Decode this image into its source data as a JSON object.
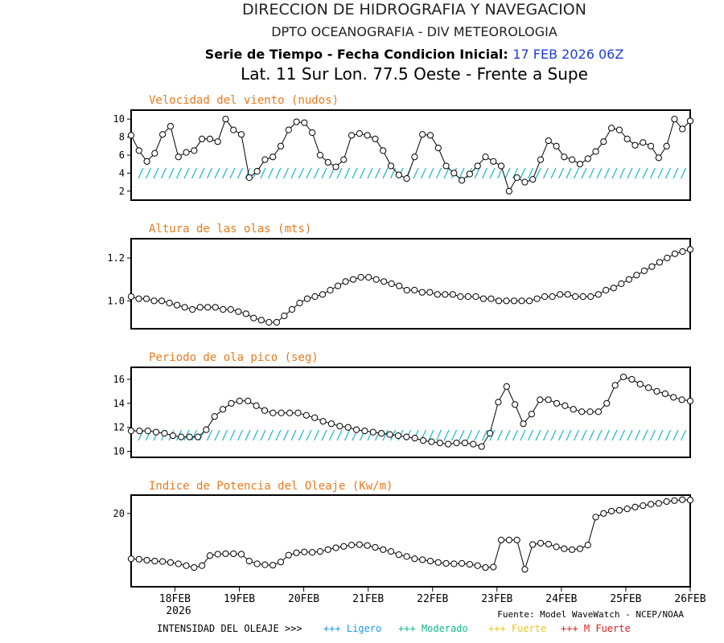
{
  "header": {
    "line1": "DIRECCION DE HIDROGRAFIA Y NAVEGACION",
    "line2": "DPTO OCEANOGRAFIA - DIV METEOROLOGIA",
    "line3_prefix": "Serie de Tiempo - Fecha Condicion Inicial:",
    "line3_date": "17 FEB 2026 06Z",
    "line4": "Lat. 11 Sur  Lon. 77.5 Oeste - Frente a Supe"
  },
  "colors": {
    "title_orange": "#e87a1e",
    "date_blue": "#1e3cd8",
    "arrow_cyan": "#17b6c8",
    "ligero": "#1a9be0",
    "moderado": "#10b890",
    "fuerte": "#e8c81a",
    "mfuerte": "#e02020"
  },
  "x_axis": {
    "ticks": [
      "18FEB",
      "19FEB",
      "20FEB",
      "21FEB",
      "22FEB",
      "23FEB",
      "24FEB",
      "25FEB",
      "26FEB"
    ],
    "year": "2026"
  },
  "chart_data": [
    {
      "type": "line",
      "title": "Velocidad del viento (nudos)",
      "ylim": [
        1,
        11
      ],
      "yticks": [
        2,
        4,
        6,
        8,
        10
      ],
      "y_tick_labels": [
        "2",
        "4",
        "6",
        "8",
        "10"
      ],
      "arrows": "wind direction arrows",
      "values": [
        8.2,
        6.5,
        5.3,
        6.2,
        8.3,
        9.2,
        5.8,
        6.3,
        6.5,
        7.8,
        7.8,
        7.5,
        10.0,
        8.8,
        8.3,
        3.5,
        4.2,
        5.5,
        5.8,
        7.0,
        8.8,
        9.7,
        9.6,
        8.5,
        6.0,
        5.2,
        4.7,
        5.5,
        8.2,
        8.4,
        8.2,
        7.8,
        6.5,
        4.8,
        3.8,
        3.4,
        5.8,
        8.3,
        8.2,
        6.8,
        4.8,
        4.0,
        3.2,
        3.9,
        4.8,
        5.8,
        5.3,
        4.8,
        2.0,
        3.5,
        3.0,
        3.3,
        5.5,
        7.6,
        7.0,
        5.8,
        5.5,
        5.0,
        5.6,
        6.4,
        7.5,
        9.0,
        8.8,
        7.8,
        7.1,
        7.4,
        7.0,
        5.7,
        7.0,
        10.0,
        8.9,
        9.8
      ]
    },
    {
      "type": "line",
      "title": "Altura de las olas (mts)",
      "ylim": [
        0.87,
        1.29
      ],
      "yticks": [
        1.0,
        1.2
      ],
      "y_tick_labels": [
        "1.0",
        "1.2"
      ],
      "values": [
        1.02,
        1.01,
        1.01,
        1.0,
        1.0,
        0.99,
        0.98,
        0.97,
        0.96,
        0.97,
        0.97,
        0.97,
        0.96,
        0.96,
        0.95,
        0.94,
        0.92,
        0.91,
        0.9,
        0.9,
        0.93,
        0.96,
        0.99,
        1.01,
        1.02,
        1.03,
        1.05,
        1.07,
        1.09,
        1.1,
        1.11,
        1.11,
        1.1,
        1.09,
        1.08,
        1.07,
        1.05,
        1.05,
        1.04,
        1.04,
        1.03,
        1.03,
        1.03,
        1.02,
        1.02,
        1.02,
        1.01,
        1.01,
        1.0,
        1.0,
        1.0,
        1.0,
        1.0,
        1.01,
        1.02,
        1.02,
        1.03,
        1.03,
        1.02,
        1.02,
        1.02,
        1.03,
        1.05,
        1.06,
        1.08,
        1.1,
        1.12,
        1.14,
        1.16,
        1.18,
        1.2,
        1.22,
        1.23,
        1.24
      ]
    },
    {
      "type": "line",
      "title": "Periodo de ola pico (seg)",
      "ylim": [
        9.5,
        17
      ],
      "yticks": [
        10,
        12,
        14,
        16
      ],
      "y_tick_labels": [
        "10",
        "12",
        "14",
        "16"
      ],
      "arrows": "wave direction arrows",
      "values": [
        11.7,
        11.7,
        11.7,
        11.6,
        11.5,
        11.3,
        11.2,
        11.2,
        11.2,
        11.8,
        12.9,
        13.5,
        14.0,
        14.2,
        14.2,
        13.8,
        13.4,
        13.2,
        13.2,
        13.2,
        13.2,
        13.0,
        12.8,
        12.5,
        12.3,
        12.1,
        12.0,
        11.8,
        11.7,
        11.6,
        11.5,
        11.4,
        11.3,
        11.2,
        11.1,
        10.9,
        10.8,
        10.7,
        10.6,
        10.7,
        10.7,
        10.6,
        10.4,
        11.5,
        14.1,
        15.4,
        13.9,
        12.3,
        13.1,
        14.3,
        14.3,
        14.0,
        13.8,
        13.5,
        13.3,
        13.3,
        13.3,
        14.0,
        15.5,
        16.2,
        16.0,
        15.6,
        15.3,
        15.0,
        14.8,
        14.5,
        14.3,
        14.2
      ]
    },
    {
      "type": "line",
      "title": "Indice de Potencia del Oleaje (Kw/m)",
      "ylim": [
        4,
        24
      ],
      "yticks": [
        20
      ],
      "y_tick_labels": [
        "20"
      ],
      "values": [
        10.1,
        10.0,
        9.8,
        9.6,
        9.5,
        9.3,
        9.0,
        8.6,
        8.2,
        8.6,
        10.8,
        11.1,
        11.2,
        11.2,
        11.1,
        9.6,
        9.0,
        8.8,
        8.7,
        9.4,
        10.9,
        11.4,
        11.6,
        11.5,
        11.7,
        12.1,
        12.5,
        12.8,
        13.1,
        13.2,
        13.0,
        12.6,
        12.1,
        11.7,
        11.0,
        10.6,
        10.1,
        9.9,
        9.6,
        9.3,
        9.1,
        9.0,
        9.1,
        8.9,
        8.6,
        8.2,
        8.3,
        14.2,
        14.2,
        14.2,
        7.8,
        13.2,
        13.5,
        13.3,
        12.7,
        12.3,
        12.1,
        12.3,
        13.1,
        19.2,
        20.0,
        20.5,
        20.7,
        21.0,
        21.4,
        21.7,
        22.0,
        22.2,
        22.6,
        22.8,
        23.0,
        22.9
      ]
    }
  ],
  "footer": {
    "source": "Fuente: Model WaveWatch - NCEP/NOAA",
    "legend_title": "INTENSIDAD DEL OLEAJE >>>",
    "legend_items": [
      {
        "label": "+++ Ligero",
        "color": "#1a9be0"
      },
      {
        "label": "+++ Moderado",
        "color": "#10b890"
      },
      {
        "label": "+++ Fuerte",
        "color": "#e8c81a"
      },
      {
        "label": "+++ M Fuerte",
        "color": "#e02020"
      }
    ]
  }
}
